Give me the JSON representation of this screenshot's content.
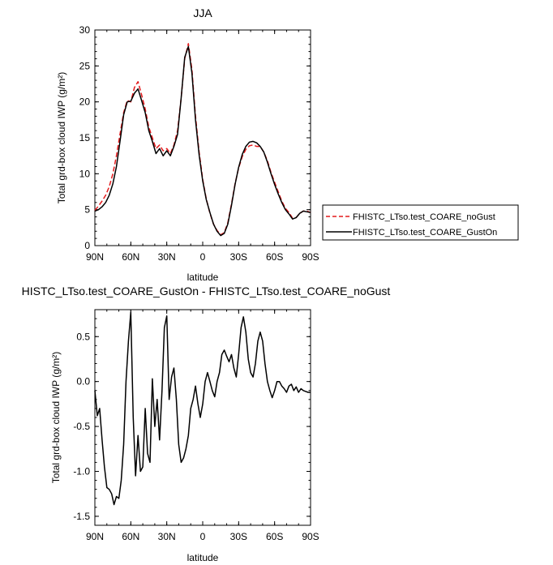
{
  "chart_data": [
    {
      "type": "line",
      "title": "JJA",
      "xlabel": "latitude",
      "ylabel": "Total grd-box cloud IWP (g/m²)",
      "xlim": [
        90,
        -90
      ],
      "ylim": [
        0,
        30
      ],
      "x_ticks": [
        90,
        60,
        30,
        0,
        -30,
        -60,
        -90
      ],
      "x_tick_labels": [
        "90N",
        "60N",
        "30N",
        "0",
        "30S",
        "60S",
        "90S"
      ],
      "y_ticks": [
        0,
        5,
        10,
        15,
        20,
        25,
        30
      ],
      "y_tick_labels": [
        "0",
        "5",
        "10",
        "15",
        "20",
        "25",
        "30"
      ],
      "grid": false,
      "legend_position": "right",
      "series": [
        {
          "name": "FHISTC_LTso.test_COARE_noGust",
          "color": "#e41a1c",
          "dash": "dashed",
          "x": [
            90,
            87,
            84,
            81,
            78,
            75,
            72,
            69,
            66,
            63,
            60,
            57,
            54,
            51,
            48,
            45,
            42,
            39,
            36,
            33,
            30,
            27,
            24,
            21,
            18,
            15,
            12,
            9,
            6,
            3,
            0,
            -3,
            -6,
            -9,
            -12,
            -15,
            -18,
            -21,
            -24,
            -27,
            -30,
            -33,
            -36,
            -39,
            -42,
            -45,
            -48,
            -51,
            -54,
            -57,
            -60,
            -63,
            -66,
            -69,
            -72,
            -75,
            -78,
            -81,
            -84,
            -87,
            -90
          ],
          "values": [
            4.9,
            5.5,
            6.2,
            7.0,
            8.2,
            10.0,
            12.5,
            15.5,
            18.5,
            20.2,
            20.0,
            22.0,
            22.8,
            21.0,
            19.0,
            16.5,
            15.0,
            13.5,
            14.0,
            13.2,
            13.5,
            12.8,
            14.0,
            16.0,
            20.5,
            26.0,
            28.1,
            24.5,
            18.0,
            13.0,
            9.2,
            6.5,
            4.5,
            3.0,
            2.1,
            1.5,
            1.8,
            3.2,
            5.8,
            8.6,
            10.8,
            12.4,
            13.4,
            13.9,
            14.0,
            13.8,
            13.8,
            13.0,
            11.8,
            10.2,
            8.8,
            7.5,
            6.2,
            5.2,
            4.6,
            3.8,
            3.9,
            4.5,
            4.8,
            4.8,
            4.6
          ]
        },
        {
          "name": "FHISTC_LTso.test_COARE_GustOn",
          "color": "#000000",
          "dash": "solid",
          "x": [
            90,
            87,
            84,
            81,
            78,
            75,
            72,
            69,
            66,
            63,
            60,
            57,
            54,
            51,
            48,
            45,
            42,
            39,
            36,
            33,
            30,
            27,
            24,
            21,
            18,
            15,
            12,
            9,
            6,
            3,
            0,
            -3,
            -6,
            -9,
            -12,
            -15,
            -18,
            -21,
            -24,
            -27,
            -30,
            -33,
            -36,
            -39,
            -42,
            -45,
            -48,
            -51,
            -54,
            -57,
            -60,
            -63,
            -66,
            -69,
            -72,
            -75,
            -78,
            -81,
            -84,
            -87,
            -90
          ],
          "values": [
            4.8,
            5.0,
            5.4,
            6.0,
            7.0,
            8.6,
            11.0,
            14.5,
            18.2,
            20.0,
            20.1,
            21.2,
            21.8,
            20.2,
            18.5,
            16.0,
            14.5,
            12.8,
            13.5,
            12.5,
            13.2,
            12.5,
            13.8,
            15.5,
            20.5,
            26.2,
            27.7,
            24.0,
            17.5,
            12.6,
            9.0,
            6.4,
            4.6,
            3.0,
            2.0,
            1.4,
            1.7,
            3.0,
            5.6,
            8.5,
            10.9,
            12.7,
            13.8,
            14.4,
            14.5,
            14.3,
            13.8,
            13.0,
            11.6,
            10.0,
            8.5,
            7.2,
            6.0,
            5.0,
            4.4,
            3.7,
            3.9,
            4.5,
            4.8,
            4.7,
            4.6
          ]
        }
      ]
    },
    {
      "type": "line",
      "title": "HISTC_LTso.test_COARE_GustOn - FHISTC_LTso.test_COARE_noGust",
      "xlabel": "latitude",
      "ylabel": "Total grd-box cloud IWP (g/m²)",
      "xlim": [
        90,
        -90
      ],
      "ylim": [
        -1.6,
        0.8
      ],
      "x_ticks": [
        90,
        60,
        30,
        0,
        -30,
        -60,
        -90
      ],
      "x_tick_labels": [
        "90N",
        "60N",
        "30N",
        "0",
        "30S",
        "60S",
        "90S"
      ],
      "y_ticks": [
        -1.5,
        -1.0,
        -0.5,
        0.0,
        0.5
      ],
      "y_tick_labels": [
        "-1.5",
        "-1.0",
        "-0.5",
        "0.0",
        "0.5"
      ],
      "grid": false,
      "series": [
        {
          "color": "#000000",
          "dash": "solid",
          "x": [
            90,
            88,
            86,
            84,
            82,
            80,
            78,
            76,
            74,
            72,
            70,
            68,
            66,
            64,
            62,
            60,
            58,
            56,
            54,
            52,
            50,
            48,
            46,
            44,
            42,
            40,
            38,
            36,
            34,
            32,
            30,
            28,
            26,
            24,
            22,
            20,
            18,
            16,
            14,
            12,
            10,
            8,
            6,
            4,
            2,
            0,
            -2,
            -4,
            -6,
            -8,
            -10,
            -12,
            -14,
            -16,
            -18,
            -20,
            -22,
            -24,
            -26,
            -28,
            -30,
            -32,
            -34,
            -36,
            -38,
            -40,
            -42,
            -44,
            -46,
            -48,
            -50,
            -52,
            -54,
            -56,
            -58,
            -60,
            -62,
            -64,
            -66,
            -68,
            -70,
            -72,
            -74,
            -76,
            -78,
            -80,
            -82,
            -84,
            -86,
            -88,
            -90
          ],
          "values": [
            -0.1,
            -0.38,
            -0.3,
            -0.65,
            -0.95,
            -1.18,
            -1.2,
            -1.25,
            -1.37,
            -1.28,
            -1.3,
            -1.1,
            -0.7,
            0.0,
            0.45,
            0.77,
            -0.4,
            -1.05,
            -0.6,
            -1.0,
            -0.95,
            -0.3,
            -0.8,
            -0.9,
            0.03,
            -0.5,
            -0.2,
            -0.65,
            -0.1,
            0.6,
            0.73,
            -0.2,
            0.05,
            0.15,
            -0.2,
            -0.7,
            -0.9,
            -0.85,
            -0.75,
            -0.6,
            -0.3,
            -0.2,
            -0.05,
            -0.25,
            -0.4,
            -0.25,
            0.0,
            0.1,
            0.0,
            -0.1,
            -0.17,
            0.0,
            0.1,
            0.3,
            0.35,
            0.28,
            0.22,
            0.3,
            0.15,
            0.05,
            0.3,
            0.6,
            0.72,
            0.55,
            0.25,
            0.1,
            0.05,
            0.2,
            0.45,
            0.55,
            0.45,
            0.2,
            0.0,
            -0.1,
            -0.18,
            -0.1,
            0.0,
            0.0,
            -0.05,
            -0.08,
            -0.12,
            -0.05,
            -0.03,
            -0.1,
            -0.06,
            -0.12,
            -0.08,
            -0.1,
            -0.11,
            -0.12,
            -0.12
          ]
        }
      ]
    }
  ]
}
